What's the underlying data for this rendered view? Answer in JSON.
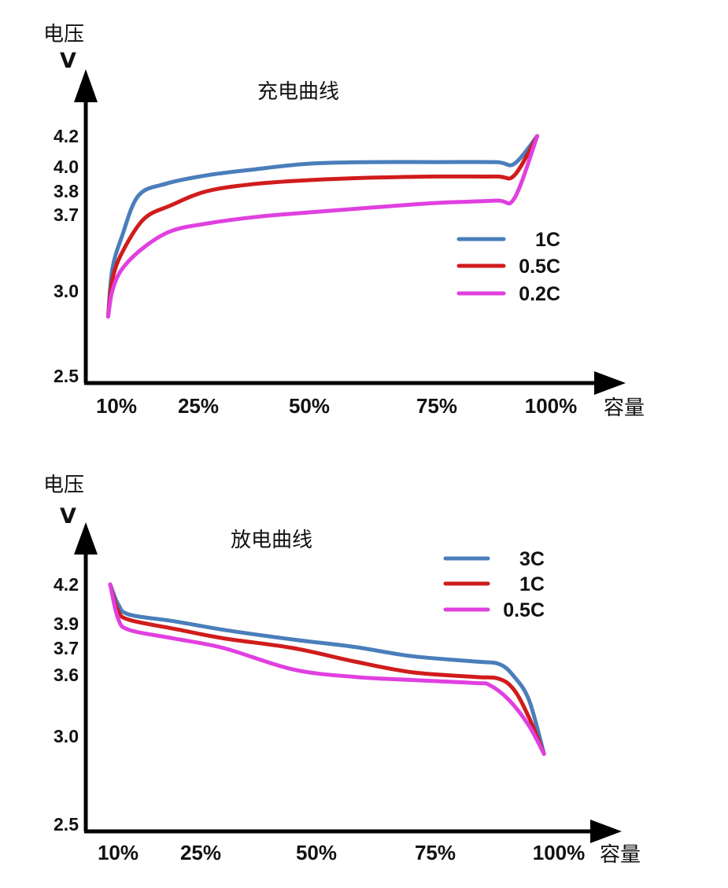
{
  "chart_data": [
    {
      "type": "line",
      "title": "充电曲线",
      "ylabel_top": "电压",
      "yunit": "V",
      "xlabel": "容量",
      "ytick_labels": [
        "4.2",
        "4.0",
        "3.8",
        "3.7",
        "3.0",
        "2.5"
      ],
      "yticks": [
        4.2,
        4.0,
        3.8,
        3.7,
        3.0,
        2.5
      ],
      "xtick_labels": [
        "10%",
        "25%",
        "50%",
        "75%",
        "100%"
      ],
      "xticks": [
        10,
        25,
        50,
        75,
        100
      ],
      "legend_position": "middle-right",
      "series": [
        {
          "name": "1C",
          "color": "#4a7ebb",
          "x": [
            8,
            9,
            11,
            14,
            19,
            27,
            38,
            50,
            62,
            75,
            88,
            92,
            97
          ],
          "y": [
            2.85,
            3.2,
            3.5,
            3.78,
            3.86,
            3.93,
            3.98,
            4.02,
            4.03,
            4.03,
            4.03,
            4.02,
            4.2
          ]
        },
        {
          "name": "0.5C",
          "color": "#d01c1c",
          "x": [
            8,
            9,
            11,
            15,
            20,
            27,
            38,
            50,
            62,
            75,
            88,
            92,
            97
          ],
          "y": [
            2.85,
            3.1,
            3.35,
            3.66,
            3.74,
            3.8,
            3.86,
            3.89,
            3.91,
            3.92,
            3.92,
            3.93,
            4.2
          ]
        },
        {
          "name": "0.2C",
          "color": "#e040e0",
          "x": [
            8,
            9,
            11,
            15,
            20,
            27,
            38,
            50,
            62,
            75,
            88,
            92,
            97
          ],
          "y": [
            2.85,
            3.0,
            3.2,
            3.4,
            3.55,
            3.62,
            3.68,
            3.71,
            3.73,
            3.75,
            3.76,
            3.77,
            4.2
          ]
        }
      ]
    },
    {
      "type": "line",
      "title": "放电曲线",
      "ylabel_top": "电压",
      "yunit": "V",
      "xlabel": "容量",
      "ytick_labels": [
        "4.2",
        "3.9",
        "3.7",
        "3.6",
        "3.0",
        "2.5"
      ],
      "yticks": [
        4.2,
        3.9,
        3.7,
        3.6,
        3.0,
        2.5
      ],
      "xtick_labels": [
        "10%",
        "25%",
        "50%",
        "75%",
        "100%"
      ],
      "xticks": [
        10,
        25,
        50,
        75,
        100
      ],
      "legend_position": "top-right",
      "series": [
        {
          "name": "3C",
          "color": "#4a7ebb",
          "x": [
            8,
            10,
            12,
            20,
            30,
            45,
            58,
            70,
            83,
            88,
            91,
            94,
            97
          ],
          "y": [
            4.2,
            4.05,
            3.97,
            3.92,
            3.85,
            3.77,
            3.71,
            3.67,
            3.65,
            3.64,
            3.58,
            3.35,
            2.9
          ]
        },
        {
          "name": "1C",
          "color": "#d01c1c",
          "x": [
            8,
            10,
            12,
            20,
            30,
            45,
            58,
            70,
            83,
            88,
            91,
            94,
            97
          ],
          "y": [
            4.2,
            4.0,
            3.93,
            3.86,
            3.78,
            3.7,
            3.65,
            3.61,
            3.58,
            3.56,
            3.45,
            3.18,
            2.9
          ]
        },
        {
          "name": "0.5C",
          "color": "#e040e0",
          "x": [
            8,
            10,
            12,
            20,
            30,
            45,
            58,
            70,
            83,
            86,
            90,
            94,
            97
          ],
          "y": [
            4.2,
            3.94,
            3.85,
            3.78,
            3.7,
            3.62,
            3.58,
            3.55,
            3.52,
            3.5,
            3.35,
            3.1,
            2.9
          ]
        }
      ]
    }
  ]
}
